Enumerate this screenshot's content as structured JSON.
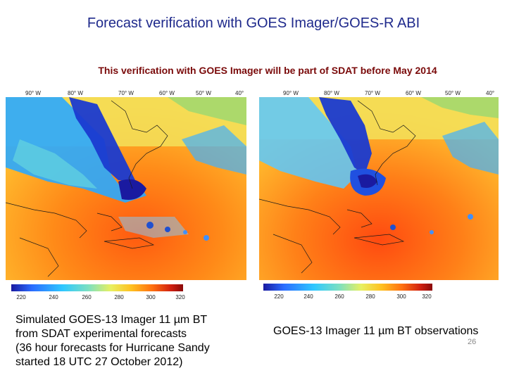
{
  "slide": {
    "title": "Forecast verification with GOES Imager/GOES-R ABI",
    "subtitle": "This verification with GOES Imager will be part of SDAT before May 2014",
    "page_number": "26"
  },
  "left_panel": {
    "lon_labels": [
      "90° W",
      "80° W",
      "70° W",
      "60° W",
      "50° W",
      "40°"
    ],
    "colorbar_ticks": [
      "220",
      "240",
      "260",
      "280",
      "300",
      "320"
    ],
    "caption_lines": [
      "Simulated GOES-13 Imager 11 µm BT",
      "from SDAT experimental forecasts",
      "(36 hour forecasts for Hurricane Sandy",
      "started 18 UTC 27 October 2012)"
    ]
  },
  "right_panel": {
    "lon_labels": [
      "90° W",
      "80° W",
      "70° W",
      "60° W",
      "50° W",
      "40°"
    ],
    "colorbar_ticks": [
      "220",
      "240",
      "260",
      "280",
      "300",
      "320"
    ],
    "caption": "GOES-13 Imager 11 µm BT observations"
  },
  "colors": {
    "title": "#1f2a8c",
    "subtitle": "#7a0a0a",
    "colorbar": [
      "#1a1aa0",
      "#2b6cff",
      "#2fc8ff",
      "#7de0c0",
      "#e8f060",
      "#ffc020",
      "#ff7010",
      "#d02010",
      "#8a0a0a"
    ]
  }
}
